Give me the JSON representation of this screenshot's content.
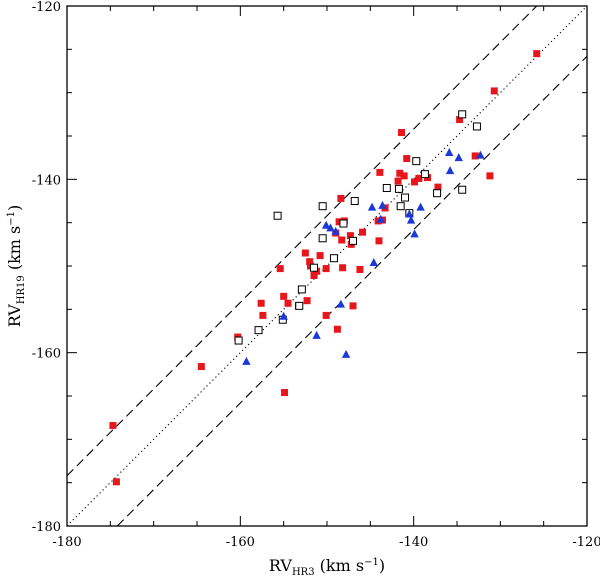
{
  "chart_data": {
    "type": "scatter",
    "xlim": [
      -180,
      -120
    ],
    "ylim": [
      -180,
      -120
    ],
    "x_ticks": [
      -180,
      -160,
      -140,
      -120
    ],
    "y_ticks": [
      -180,
      -160,
      -140,
      -120
    ],
    "xlabel": {
      "main": "RV",
      "sub": "HR3",
      "units": " (km s",
      "exp": "−1",
      "close": ")"
    },
    "ylabel": {
      "main": "RV",
      "sub": "HR19",
      "units": " (km s",
      "exp": "−1",
      "close": ")"
    },
    "grid": false,
    "reference_lines": [
      {
        "style": "dotted",
        "slope": 1,
        "intercept": 0
      },
      {
        "style": "dashed",
        "slope": 1,
        "intercept": 5.8
      },
      {
        "style": "dashed",
        "slope": 1,
        "intercept": -5.8
      }
    ],
    "series": [
      {
        "marker": "filled-square",
        "color": "#e8151b",
        "points": [
          [
            -125.8,
            -125.5
          ],
          [
            -130.7,
            -129.8
          ],
          [
            -131.2,
            -139.6
          ],
          [
            -132.9,
            -137.3
          ],
          [
            -134.7,
            -133.1
          ],
          [
            -137.2,
            -140.9
          ],
          [
            -138.4,
            -139.8
          ],
          [
            -139.4,
            -139.9
          ],
          [
            -139.9,
            -140.3
          ],
          [
            -140.8,
            -137.6
          ],
          [
            -141.1,
            -139.6
          ],
          [
            -141.4,
            -134.6
          ],
          [
            -141.6,
            -139.3
          ],
          [
            -141.8,
            -140.2
          ],
          [
            -143.3,
            -143.3
          ],
          [
            -143.6,
            -144.7
          ],
          [
            -143.9,
            -139.2
          ],
          [
            -144.0,
            -147.1
          ],
          [
            -144.1,
            -144.8
          ],
          [
            -145.9,
            -146.1
          ],
          [
            -146.2,
            -150.4
          ],
          [
            -147.0,
            -154.6
          ],
          [
            -147.2,
            -147.5
          ],
          [
            -147.3,
            -146.5
          ],
          [
            -148.0,
            -144.8
          ],
          [
            -148.2,
            -150.2
          ],
          [
            -148.3,
            -147.0
          ],
          [
            -148.4,
            -142.2
          ],
          [
            -148.6,
            -144.9
          ],
          [
            -148.8,
            -157.3
          ],
          [
            -149.0,
            -146.2
          ],
          [
            -150.1,
            -150.3
          ],
          [
            -150.1,
            -155.7
          ],
          [
            -150.8,
            -148.8
          ],
          [
            -151.2,
            -150.6
          ],
          [
            -151.5,
            -151.1
          ],
          [
            -151.9,
            -150.0
          ],
          [
            -152.0,
            -149.5
          ],
          [
            -152.3,
            -154.0
          ],
          [
            -152.5,
            -148.5
          ],
          [
            -153.3,
            -154.6
          ],
          [
            -154.5,
            -154.3
          ],
          [
            -154.9,
            -164.6
          ],
          [
            -155.0,
            -153.5
          ],
          [
            -155.4,
            -150.3
          ],
          [
            -157.4,
            -155.7
          ],
          [
            -157.6,
            -154.3
          ],
          [
            -160.3,
            -158.2
          ],
          [
            -164.5,
            -161.6
          ],
          [
            -174.3,
            -174.9
          ],
          [
            -174.7,
            -168.4
          ]
        ]
      },
      {
        "marker": "open-square",
        "color": "#000000",
        "points": [
          [
            -132.7,
            -133.9
          ],
          [
            -134.4,
            -132.5
          ],
          [
            -134.4,
            -141.2
          ],
          [
            -137.3,
            -141.6
          ],
          [
            -138.7,
            -139.4
          ],
          [
            -139.7,
            -137.9
          ],
          [
            -140.5,
            -143.9
          ],
          [
            -141.0,
            -142.1
          ],
          [
            -141.5,
            -143.1
          ],
          [
            -141.7,
            -141.1
          ],
          [
            -143.1,
            -141.0
          ],
          [
            -146.8,
            -142.5
          ],
          [
            -147.0,
            -147.1
          ],
          [
            -148.1,
            -145.1
          ],
          [
            -149.2,
            -149.1
          ],
          [
            -150.5,
            -143.1
          ],
          [
            -150.5,
            -146.8
          ],
          [
            -151.5,
            -150.2
          ],
          [
            -152.9,
            -152.7
          ],
          [
            -153.2,
            -154.6
          ],
          [
            -155.1,
            -156.2
          ],
          [
            -155.7,
            -144.2
          ],
          [
            -157.9,
            -157.4
          ],
          [
            -160.2,
            -158.6
          ]
        ]
      },
      {
        "marker": "filled-triangle",
        "color": "#1a39d8",
        "points": [
          [
            -132.3,
            -137.2
          ],
          [
            -134.8,
            -137.5
          ],
          [
            -135.8,
            -139.0
          ],
          [
            -135.9,
            -136.9
          ],
          [
            -139.2,
            -143.2
          ],
          [
            -139.9,
            -146.3
          ],
          [
            -140.3,
            -144.7
          ],
          [
            -140.5,
            -144.0
          ],
          [
            -143.6,
            -143.0
          ],
          [
            -143.8,
            -144.6
          ],
          [
            -144.6,
            -149.6
          ],
          [
            -144.8,
            -143.2
          ],
          [
            -147.8,
            -160.2
          ],
          [
            -148.4,
            -154.4
          ],
          [
            -149.0,
            -146.0
          ],
          [
            -149.6,
            -145.6
          ],
          [
            -150.1,
            -145.3
          ],
          [
            -151.2,
            -158.0
          ],
          [
            -155.0,
            -155.8
          ],
          [
            -159.3,
            -161.0
          ]
        ]
      }
    ]
  }
}
